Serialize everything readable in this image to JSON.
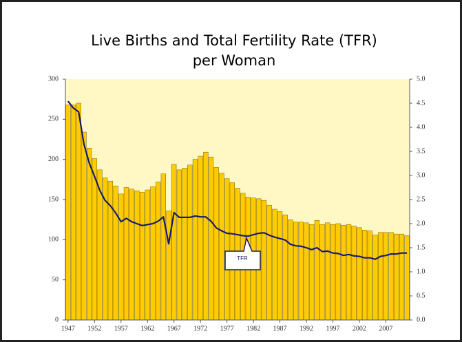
{
  "chart_data": {
    "type": "bar_line",
    "title": [
      "Live Births and Total Fertility Rate (TFR)",
      "per Woman"
    ],
    "x": [
      1947,
      1948,
      1949,
      1950,
      1951,
      1952,
      1953,
      1954,
      1955,
      1956,
      1957,
      1958,
      1959,
      1960,
      1961,
      1962,
      1963,
      1964,
      1965,
      1966,
      1967,
      1968,
      1969,
      1970,
      1971,
      1972,
      1973,
      1974,
      1975,
      1976,
      1977,
      1978,
      1979,
      1980,
      1981,
      1982,
      1983,
      1984,
      1985,
      1986,
      1987,
      1988,
      1989,
      1990,
      1991,
      1992,
      1993,
      1994,
      1995,
      1996,
      1997,
      1998,
      1999,
      2000,
      2001,
      2002,
      2003,
      2004,
      2005,
      2006,
      2007,
      2008,
      2009,
      2010,
      2011
    ],
    "xlim": [
      1946.5,
      2011.5
    ],
    "xticks": [
      1947,
      1952,
      1957,
      1962,
      1967,
      1972,
      1977,
      1982,
      1987,
      1992,
      1997,
      2002,
      2007
    ],
    "ylim": [
      0,
      300
    ],
    "yticks": [
      0,
      50,
      100,
      150,
      200,
      250,
      300
    ],
    "y2lim": [
      0,
      5
    ],
    "y2ticks": [
      {
        "value": 0,
        "label": "0.0"
      },
      0.5,
      {
        "value": 1,
        "label": "1.0"
      },
      1.5,
      {
        "value": 2,
        "label": "2.0"
      },
      2.5,
      {
        "value": 3,
        "label": "3.0"
      },
      3.5,
      {
        "value": 4,
        "label": "4.0"
      },
      4.5,
      {
        "value": 5,
        "label": "5.0"
      }
    ],
    "series": [
      {
        "type": "bar",
        "color": "#ffcc00",
        "values": [
          268,
          268,
          270,
          234,
          214,
          201,
          187,
          177,
          173,
          167,
          157,
          165,
          163,
          161,
          159,
          162,
          166,
          172,
          182,
          136,
          194,
          187,
          189,
          193,
          200,
          204,
          209,
          203,
          190,
          183,
          176,
          171,
          164,
          158,
          153,
          152,
          151,
          149,
          143,
          138,
          135,
          131,
          125,
          122,
          122,
          121,
          119,
          124,
          119,
          121,
          119,
          120,
          118,
          119,
          117,
          115,
          112,
          111,
          106,
          109,
          109,
          109,
          107,
          107,
          105
        ]
      },
      {
        "type": "line",
        "name": "TFR",
        "color": "#1a1a6e",
        "axis": "y2",
        "values": [
          4.54,
          4.4,
          4.32,
          3.65,
          3.26,
          2.98,
          2.69,
          2.48,
          2.37,
          2.22,
          2.04,
          2.11,
          2.04,
          2.0,
          1.96,
          1.98,
          2.0,
          2.05,
          2.14,
          1.58,
          2.23,
          2.13,
          2.13,
          2.13,
          2.16,
          2.14,
          2.14,
          2.05,
          1.91,
          1.85,
          1.8,
          1.79,
          1.77,
          1.75,
          1.74,
          1.77,
          1.8,
          1.81,
          1.76,
          1.72,
          1.69,
          1.66,
          1.57,
          1.54,
          1.53,
          1.5,
          1.46,
          1.5,
          1.42,
          1.43,
          1.39,
          1.38,
          1.34,
          1.36,
          1.33,
          1.32,
          1.29,
          1.29,
          1.26,
          1.32,
          1.34,
          1.37,
          1.37,
          1.39,
          1.39
        ]
      }
    ]
  }
}
